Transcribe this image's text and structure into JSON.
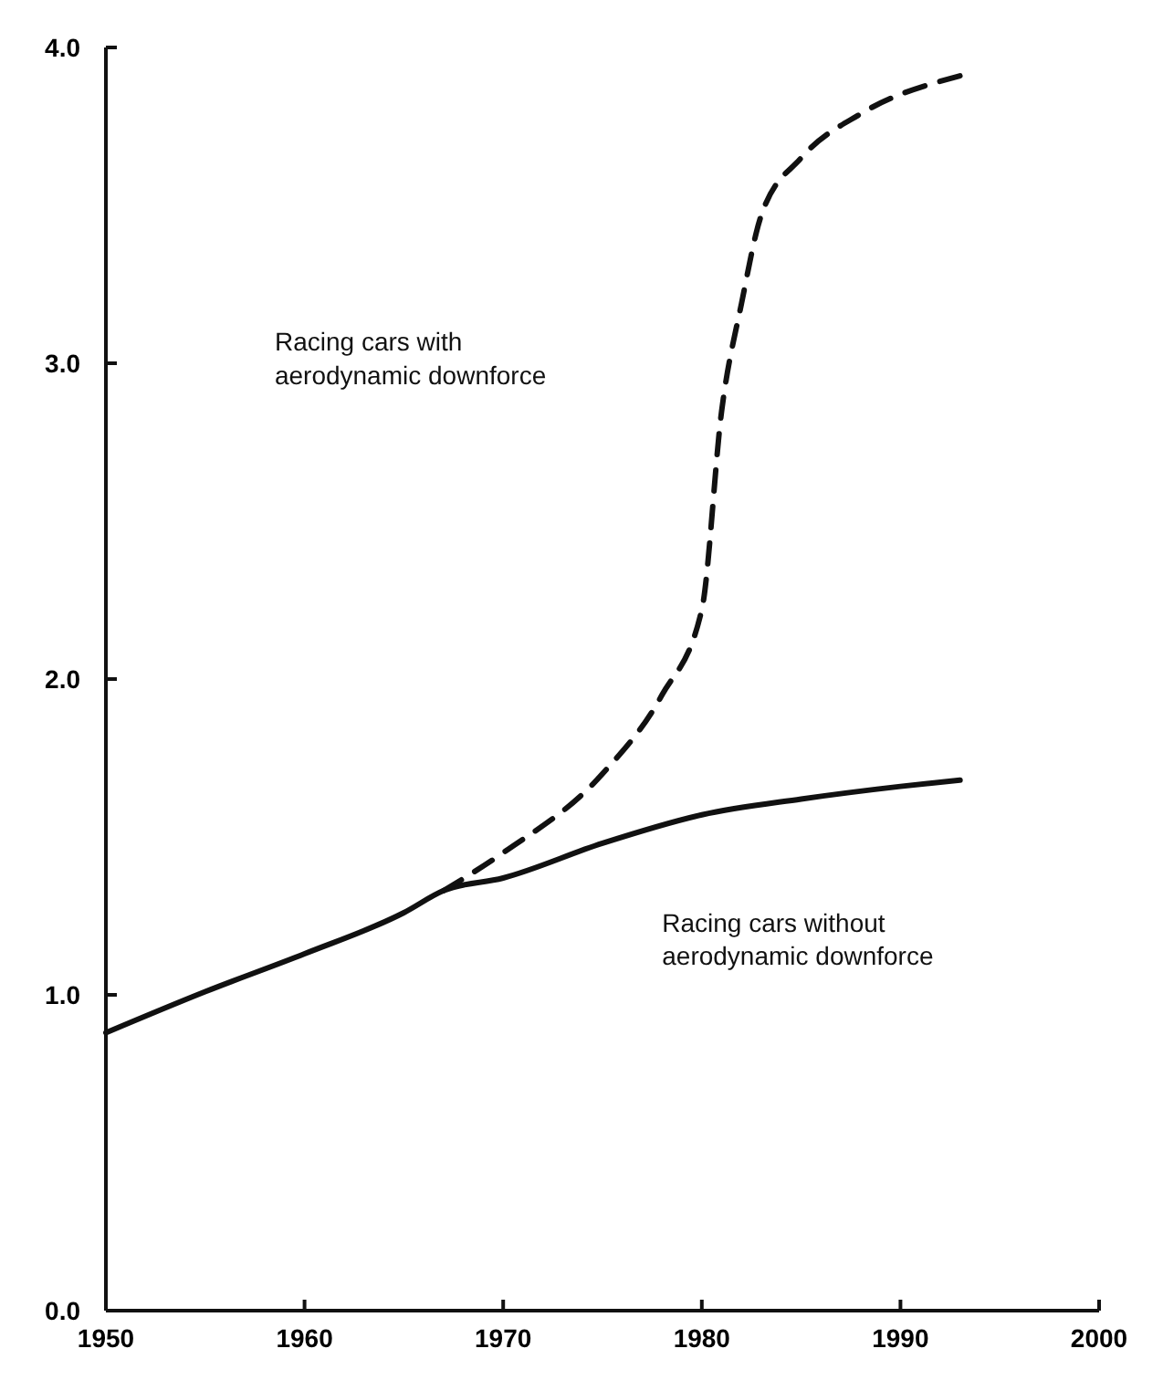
{
  "chart_data": {
    "type": "line",
    "xlim": [
      1950,
      2000
    ],
    "ylim": [
      0,
      4
    ],
    "xticks": [
      1950,
      1960,
      1970,
      1980,
      1990,
      2000
    ],
    "yticks": [
      {
        "value": 0,
        "label": "0.0"
      },
      {
        "value": 1,
        "label": "1.0"
      },
      {
        "value": 2,
        "label": "2.0"
      },
      {
        "value": 3,
        "label": "3.0"
      },
      {
        "value": 4,
        "label": "4.0"
      }
    ],
    "grid": false,
    "marker": "none",
    "series": [
      {
        "color": "#111111",
        "line_style": "solid",
        "x": [
          1950,
          1955,
          1960,
          1965,
          1967,
          1970,
          1975,
          1980,
          1985,
          1990,
          1993
        ],
        "values": [
          0.88,
          1.01,
          1.13,
          1.26,
          1.33,
          1.37,
          1.48,
          1.57,
          1.62,
          1.66,
          1.68
        ]
      },
      {
        "color": "#111111",
        "line_style": "dashed",
        "x": [
          1967,
          1970,
          1975,
          1978,
          1980,
          1981,
          1982,
          1983,
          1985,
          1988,
          1993
        ],
        "values": [
          1.33,
          1.45,
          1.7,
          1.95,
          2.22,
          2.85,
          3.19,
          3.47,
          3.65,
          3.79,
          3.91
        ]
      }
    ],
    "annotations": [
      "Racing cars with\naerodynamic downforce",
      "Racing cars without\naerodynamic downforce"
    ]
  }
}
